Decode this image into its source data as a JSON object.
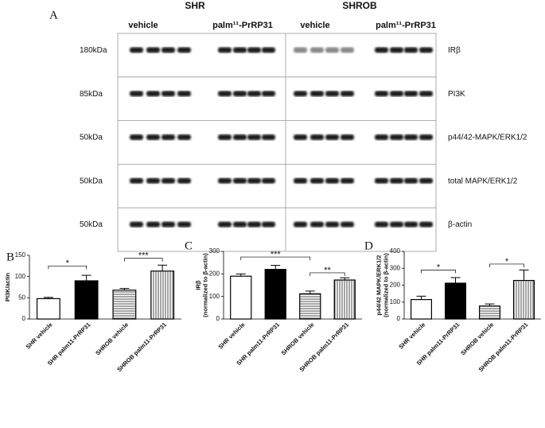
{
  "panel_a": {
    "label": "A",
    "groups": [
      "SHR",
      "SHROB"
    ],
    "treatments": [
      "vehicle",
      "palm¹¹-PrRP31",
      "vehicle",
      "palm¹¹-PrRP31"
    ],
    "rows": [
      {
        "size": "180kDa",
        "protein": "IRβ"
      },
      {
        "size": "85kDa",
        "protein": "PI3K"
      },
      {
        "size": "50kDa",
        "protein": "p44/42-MAPK/ERK1/2"
      },
      {
        "size": "50kDa",
        "protein": "total MAPK/ERK1/2"
      },
      {
        "size": "50kDa",
        "protein": "β-actin"
      }
    ]
  },
  "chart_data": [
    {
      "type": "bar",
      "label": "B",
      "ylabel": [
        "PI3K/actin"
      ],
      "categories": [
        "SHR vehicle",
        "SHR palm11-PrRP31",
        "SHROB vehicle",
        "SHROB palm11-PrRP31"
      ],
      "values": [
        48,
        90,
        68,
        113
      ],
      "errors": [
        3,
        13,
        4,
        14
      ],
      "patterns": [
        "none",
        "solid",
        "hstripe",
        "vstripe"
      ],
      "ylim": [
        0,
        150
      ],
      "yticks": [
        0,
        50,
        100,
        150
      ],
      "significance": [
        {
          "from": 0,
          "to": 1,
          "y": 125,
          "text": "*"
        },
        {
          "from": 2,
          "to": 3,
          "y": 143,
          "text": "***"
        }
      ]
    },
    {
      "type": "bar",
      "label": "C",
      "ylabel": [
        "IRβ",
        "(normalized to β-actin)"
      ],
      "categories": [
        "SHR vehicle",
        "SHR palm11-PrRP31",
        "SHROB vehicle",
        "SHROB palm11-PrRP31"
      ],
      "values": [
        190,
        220,
        112,
        173
      ],
      "errors": [
        10,
        18,
        12,
        10
      ],
      "patterns": [
        "none",
        "solid",
        "hstripe",
        "vstripe"
      ],
      "ylim": [
        0,
        300
      ],
      "yticks": [
        0,
        100,
        200,
        300
      ],
      "significance": [
        {
          "from": 0,
          "to": 2,
          "y": 275,
          "text": "***"
        },
        {
          "from": 2,
          "to": 3,
          "y": 205,
          "text": "**"
        }
      ]
    },
    {
      "type": "bar",
      "label": "D",
      "ylabel": [
        "p44/42 MAPK/ERK1/2",
        "(normalized to β-actin)"
      ],
      "categories": [
        "SHR vehicle",
        "SHR palm11-PrRP31",
        "SHROB vehicle",
        "SHROB palm11-PrRP31"
      ],
      "values": [
        115,
        212,
        77,
        228
      ],
      "errors": [
        20,
        33,
        12,
        62
      ],
      "patterns": [
        "none",
        "solid",
        "hstripe",
        "vstripe"
      ],
      "ylim": [
        0,
        400
      ],
      "yticks": [
        0,
        100,
        200,
        300,
        400
      ],
      "significance": [
        {
          "from": 0,
          "to": 1,
          "y": 290,
          "text": "*"
        },
        {
          "from": 2,
          "to": 3,
          "y": 325,
          "text": "*"
        }
      ]
    }
  ]
}
